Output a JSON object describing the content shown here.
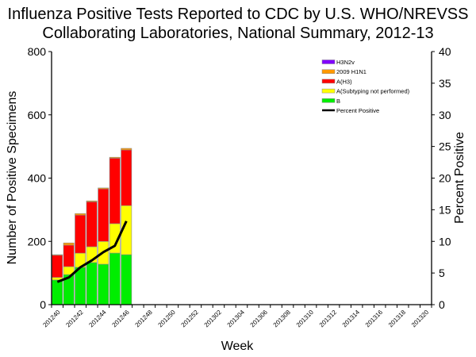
{
  "chart_data": {
    "type": "bar",
    "stacked": true,
    "title_lines": [
      "Influenza Positive Tests Reported to CDC by U.S. WHO/NREVSS",
      "Collaborating Laboratories, National Summary, 2012-13"
    ],
    "xlabel": "Week",
    "ylabel": "Number of Positive Specimens",
    "y2label": "Percent Positive",
    "ylim": [
      0,
      800
    ],
    "y2lim": [
      0,
      40
    ],
    "yticks": [
      0,
      200,
      400,
      600,
      800
    ],
    "y2ticks": [
      0,
      5,
      10,
      15,
      20,
      25,
      30,
      35,
      40
    ],
    "grid": false,
    "legend_position": "top-right",
    "categories": [
      "201240",
      "201241",
      "201242",
      "201243",
      "201244",
      "201245",
      "201246",
      "201247",
      "201248",
      "201249",
      "201250",
      "201251",
      "201252",
      "201301",
      "201302",
      "201303",
      "201304",
      "201305",
      "201306",
      "201307",
      "201308",
      "201309",
      "201310",
      "201311",
      "201312",
      "201313",
      "201314",
      "201315",
      "201316",
      "201317",
      "201318",
      "201319",
      "201320"
    ],
    "xtick_labels": [
      "201240",
      "201242",
      "201244",
      "201246",
      "201248",
      "201250",
      "201252",
      "201302",
      "201304",
      "201306",
      "201308",
      "201310",
      "201312",
      "201314",
      "201316",
      "201318",
      "201320"
    ],
    "series": [
      {
        "name": "B",
        "color": "#00ee00",
        "values": [
          78,
          95,
          118,
          133,
          128,
          163,
          158
        ]
      },
      {
        "name": "A(Subtyping not performed)",
        "color": "#ffff00",
        "values": [
          8,
          25,
          45,
          50,
          72,
          93,
          155
        ]
      },
      {
        "name": "A(H3)",
        "color": "#ff0000",
        "values": [
          71,
          68,
          120,
          142,
          166,
          207,
          176
        ]
      },
      {
        "name": "2009 H1N1",
        "color": "#ff9900",
        "values": [
          1,
          7,
          5,
          3,
          3,
          3,
          5
        ]
      },
      {
        "name": "H3N2v",
        "color": "#8000ff",
        "values": [
          0,
          0,
          0,
          0,
          0,
          0,
          0
        ]
      }
    ],
    "line_series": {
      "name": "Percent Positive",
      "color": "#000000",
      "axis": "right",
      "values": [
        3.6,
        4.3,
        5.9,
        7.0,
        8.3,
        9.3,
        13.2
      ]
    },
    "legend": [
      {
        "label": "H3N2v",
        "color": "#8000ff",
        "kind": "box"
      },
      {
        "label": "2009 H1N1",
        "color": "#ff9900",
        "kind": "box"
      },
      {
        "label": "A(H3)",
        "color": "#ff0000",
        "kind": "box"
      },
      {
        "label": "A(Subtyping not performed)",
        "color": "#ffff00",
        "kind": "box"
      },
      {
        "label": "B",
        "color": "#00ee00",
        "kind": "box"
      },
      {
        "label": "Percent Positive",
        "color": "#000000",
        "kind": "line"
      }
    ]
  }
}
